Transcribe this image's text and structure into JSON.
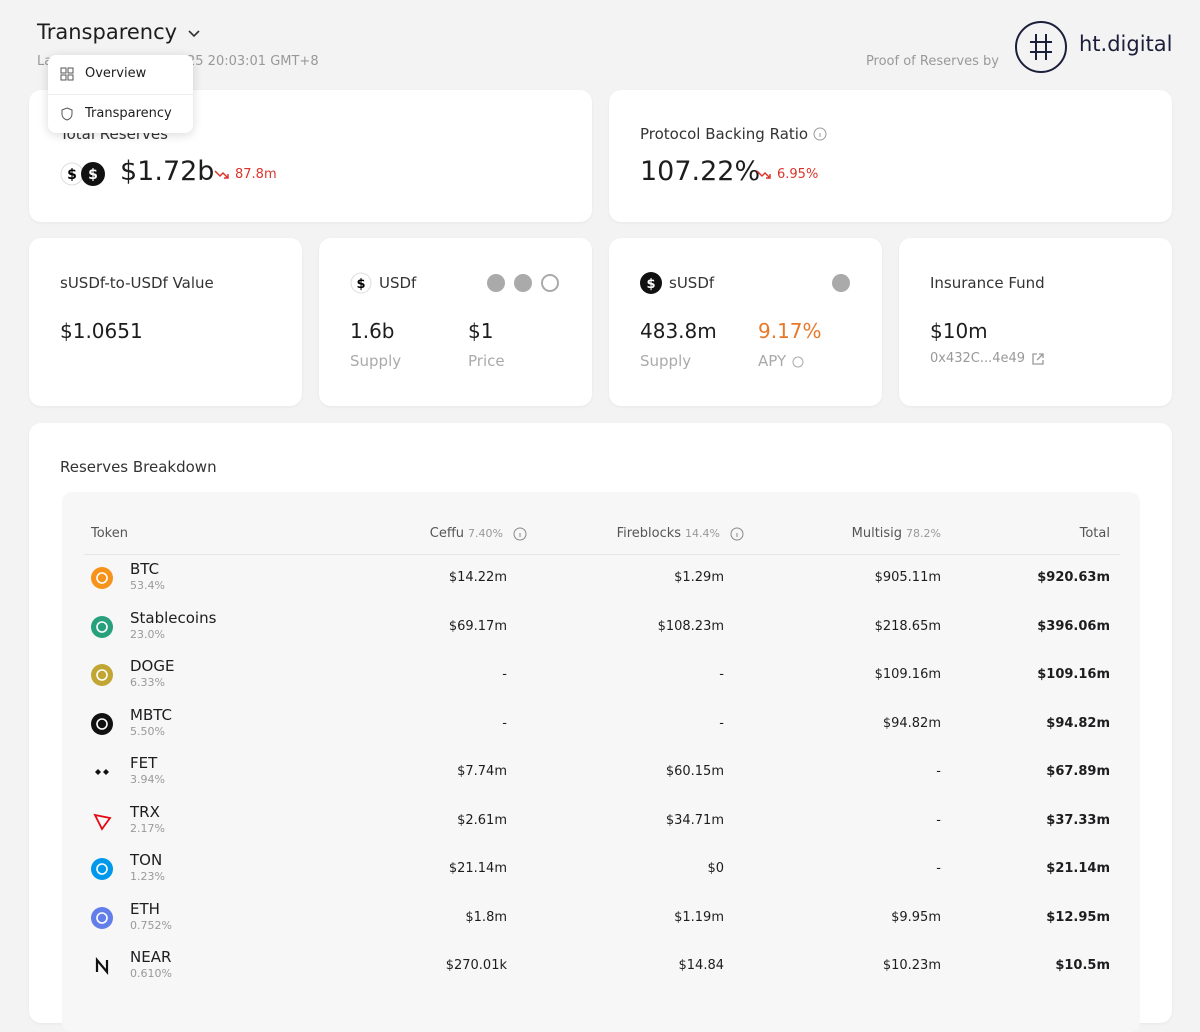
{
  "header": {
    "title": "Transparency",
    "updated_visible_start": "La",
    "updated_visible_end": "25 20:03:01 GMT+8",
    "proof_label": "Proof of Reserves by",
    "brand": "ht.digital"
  },
  "menu": {
    "items": [
      "Overview",
      "Transparency"
    ]
  },
  "summary": [
    {
      "label": "Total Reserves",
      "value": "$1.72b",
      "change": "87.8m"
    },
    {
      "label": "Protocol Backing Ratio",
      "value": "107.22%",
      "change": "6.95%"
    }
  ],
  "cards": {
    "susdf_to_usdf": {
      "label": "sUSDf-to-USDf Value",
      "value": "$1.0651"
    },
    "usdf": {
      "label": "USDf",
      "supply": "1.6b",
      "supply_label": "Supply",
      "price": "$1",
      "price_label": "Price"
    },
    "susdf": {
      "label": "sUSDf",
      "supply": "483.8m",
      "supply_label": "Supply",
      "apy": "9.17%",
      "apy_label": "APY"
    },
    "insurance": {
      "label": "Insurance Fund",
      "value": "$10m",
      "address": "0x432C...4e49"
    }
  },
  "breakdown": {
    "title": "Reserves Breakdown",
    "columns": [
      {
        "name": "Token"
      },
      {
        "name": "Ceffu",
        "share": "7.40%"
      },
      {
        "name": "Fireblocks",
        "share": "14.4%"
      },
      {
        "name": "Multisig",
        "share": "78.2%"
      },
      {
        "name": "Total"
      }
    ],
    "rows": [
      {
        "token": "BTC",
        "share": "53.4%",
        "cells": [
          "$14.22m",
          "$1.29m",
          "$905.11m",
          "$920.63m"
        ],
        "icon": "circle",
        "icon_color": "#f7931a"
      },
      {
        "token": "Stablecoins",
        "share": "23.0%",
        "cells": [
          "$69.17m",
          "$108.23m",
          "$218.65m",
          "$396.06m"
        ],
        "icon": "circle",
        "icon_color": "#26a17b"
      },
      {
        "token": "DOGE",
        "share": "6.33%",
        "cells": [
          "-",
          "-",
          "$109.16m",
          "$109.16m"
        ],
        "icon": "circle",
        "icon_color": "#c2a633"
      },
      {
        "token": "MBTC",
        "share": "5.50%",
        "cells": [
          "-",
          "-",
          "$94.82m",
          "$94.82m"
        ],
        "icon": "circle",
        "icon_color": "#111111"
      },
      {
        "token": "FET",
        "share": "3.94%",
        "cells": [
          "$7.74m",
          "$60.15m",
          "-",
          "$67.89m"
        ],
        "icon": "diamond",
        "icon_color": "#111111"
      },
      {
        "token": "TRX",
        "share": "2.17%",
        "cells": [
          "$2.61m",
          "$34.71m",
          "-",
          "$37.33m"
        ],
        "icon": "triangle",
        "icon_color": "#e50915"
      },
      {
        "token": "TON",
        "share": "1.23%",
        "cells": [
          "$21.14m",
          "$0",
          "-",
          "$21.14m"
        ],
        "icon": "circle",
        "icon_color": "#0098ea"
      },
      {
        "token": "ETH",
        "share": "0.752%",
        "cells": [
          "$1.8m",
          "$1.19m",
          "$9.95m",
          "$12.95m"
        ],
        "icon": "circle",
        "icon_color": "#627eea"
      },
      {
        "token": "NEAR",
        "share": "0.610%",
        "cells": [
          "$270.01k",
          "$14.84",
          "$10.23m",
          "$10.5m"
        ],
        "icon": "n",
        "icon_color": "#111111"
      }
    ]
  }
}
